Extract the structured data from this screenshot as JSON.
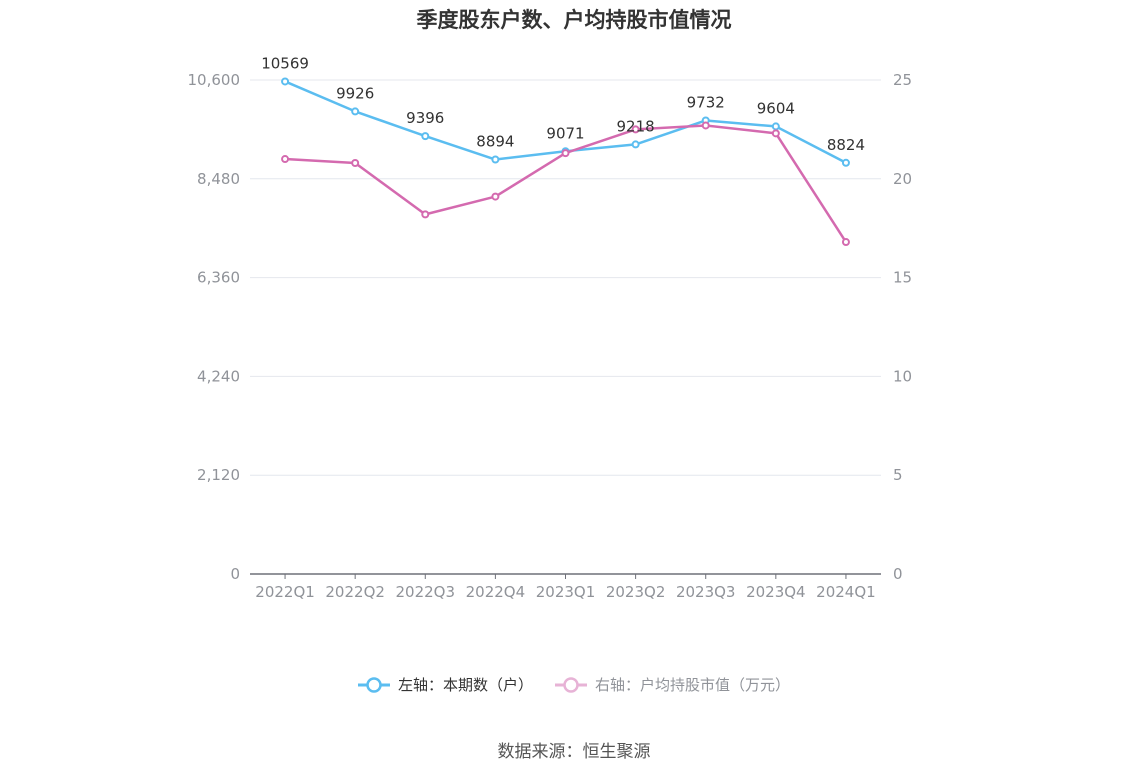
{
  "title": "季度股东户数、户均持股市值情况",
  "source": "数据来源：恒生聚源",
  "legend": {
    "left": "左轴：本期数（户）",
    "right": "右轴：户均持股市值（万元）"
  },
  "colors": {
    "left": "#5bbdf0",
    "right": "#d46aaf",
    "right_legend": "#e7b3d6",
    "grid": "#e4e7ed",
    "axis": "#909399"
  },
  "chart_data": {
    "type": "line",
    "categories": [
      "2022Q1",
      "2022Q2",
      "2022Q3",
      "2022Q4",
      "2023Q1",
      "2023Q2",
      "2023Q3",
      "2023Q4",
      "2024Q1"
    ],
    "series": [
      {
        "name": "左轴：本期数（户）",
        "axis": "left",
        "values": [
          10569,
          9926,
          9396,
          8894,
          9071,
          9218,
          9732,
          9604,
          8824
        ]
      },
      {
        "name": "右轴：户均持股市值（万元）",
        "axis": "right",
        "values": [
          21.0,
          20.8,
          18.2,
          19.1,
          21.3,
          22.5,
          22.7,
          22.3,
          16.8
        ]
      }
    ],
    "left_axis": {
      "ticks": [
        "0",
        "2,120",
        "4,240",
        "6,360",
        "8,480",
        "10,600"
      ],
      "ylim": [
        0,
        10600
      ]
    },
    "right_axis": {
      "ticks": [
        "0",
        "5",
        "10",
        "15",
        "20",
        "25"
      ],
      "ylim": [
        0,
        25
      ]
    },
    "data_labels": [
      "10569",
      "9926",
      "9396",
      "8894",
      "9071",
      "9218",
      "9732",
      "9604",
      "8824"
    ],
    "grid": true,
    "legend_position": "bottom"
  }
}
